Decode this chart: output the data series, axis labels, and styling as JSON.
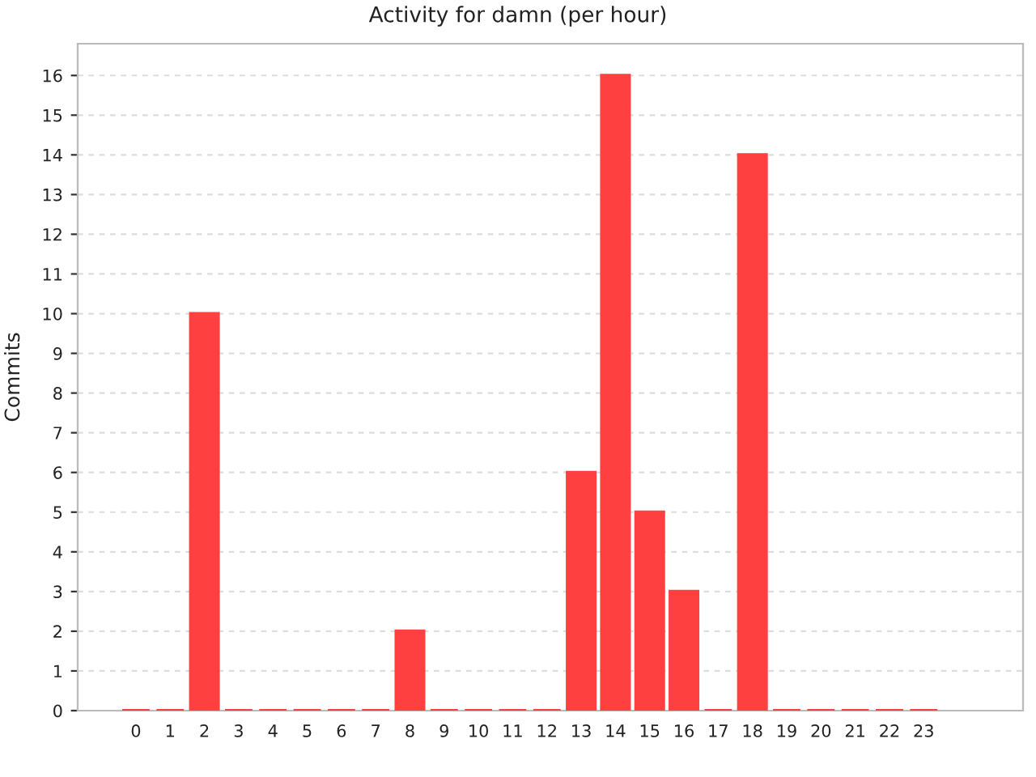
{
  "chart_data": {
    "type": "bar",
    "title": "Activity for damn (per hour)",
    "ylabel": "Commits",
    "categories": [
      "0",
      "1",
      "2",
      "3",
      "4",
      "5",
      "6",
      "7",
      "8",
      "9",
      "10",
      "11",
      "12",
      "13",
      "14",
      "15",
      "16",
      "17",
      "18",
      "19",
      "20",
      "21",
      "22",
      "23"
    ],
    "values": [
      0,
      0,
      10,
      0,
      0,
      0,
      0,
      0,
      2,
      0,
      0,
      0,
      0,
      6,
      16,
      5,
      3,
      0,
      14,
      0,
      0,
      0,
      0,
      0
    ],
    "color": "#ff4040",
    "ylim": [
      0,
      16.8
    ],
    "yticks": [
      0,
      1,
      2,
      3,
      4,
      5,
      6,
      7,
      8,
      9,
      10,
      11,
      12,
      13,
      14,
      15,
      16
    ],
    "grid": "y"
  }
}
